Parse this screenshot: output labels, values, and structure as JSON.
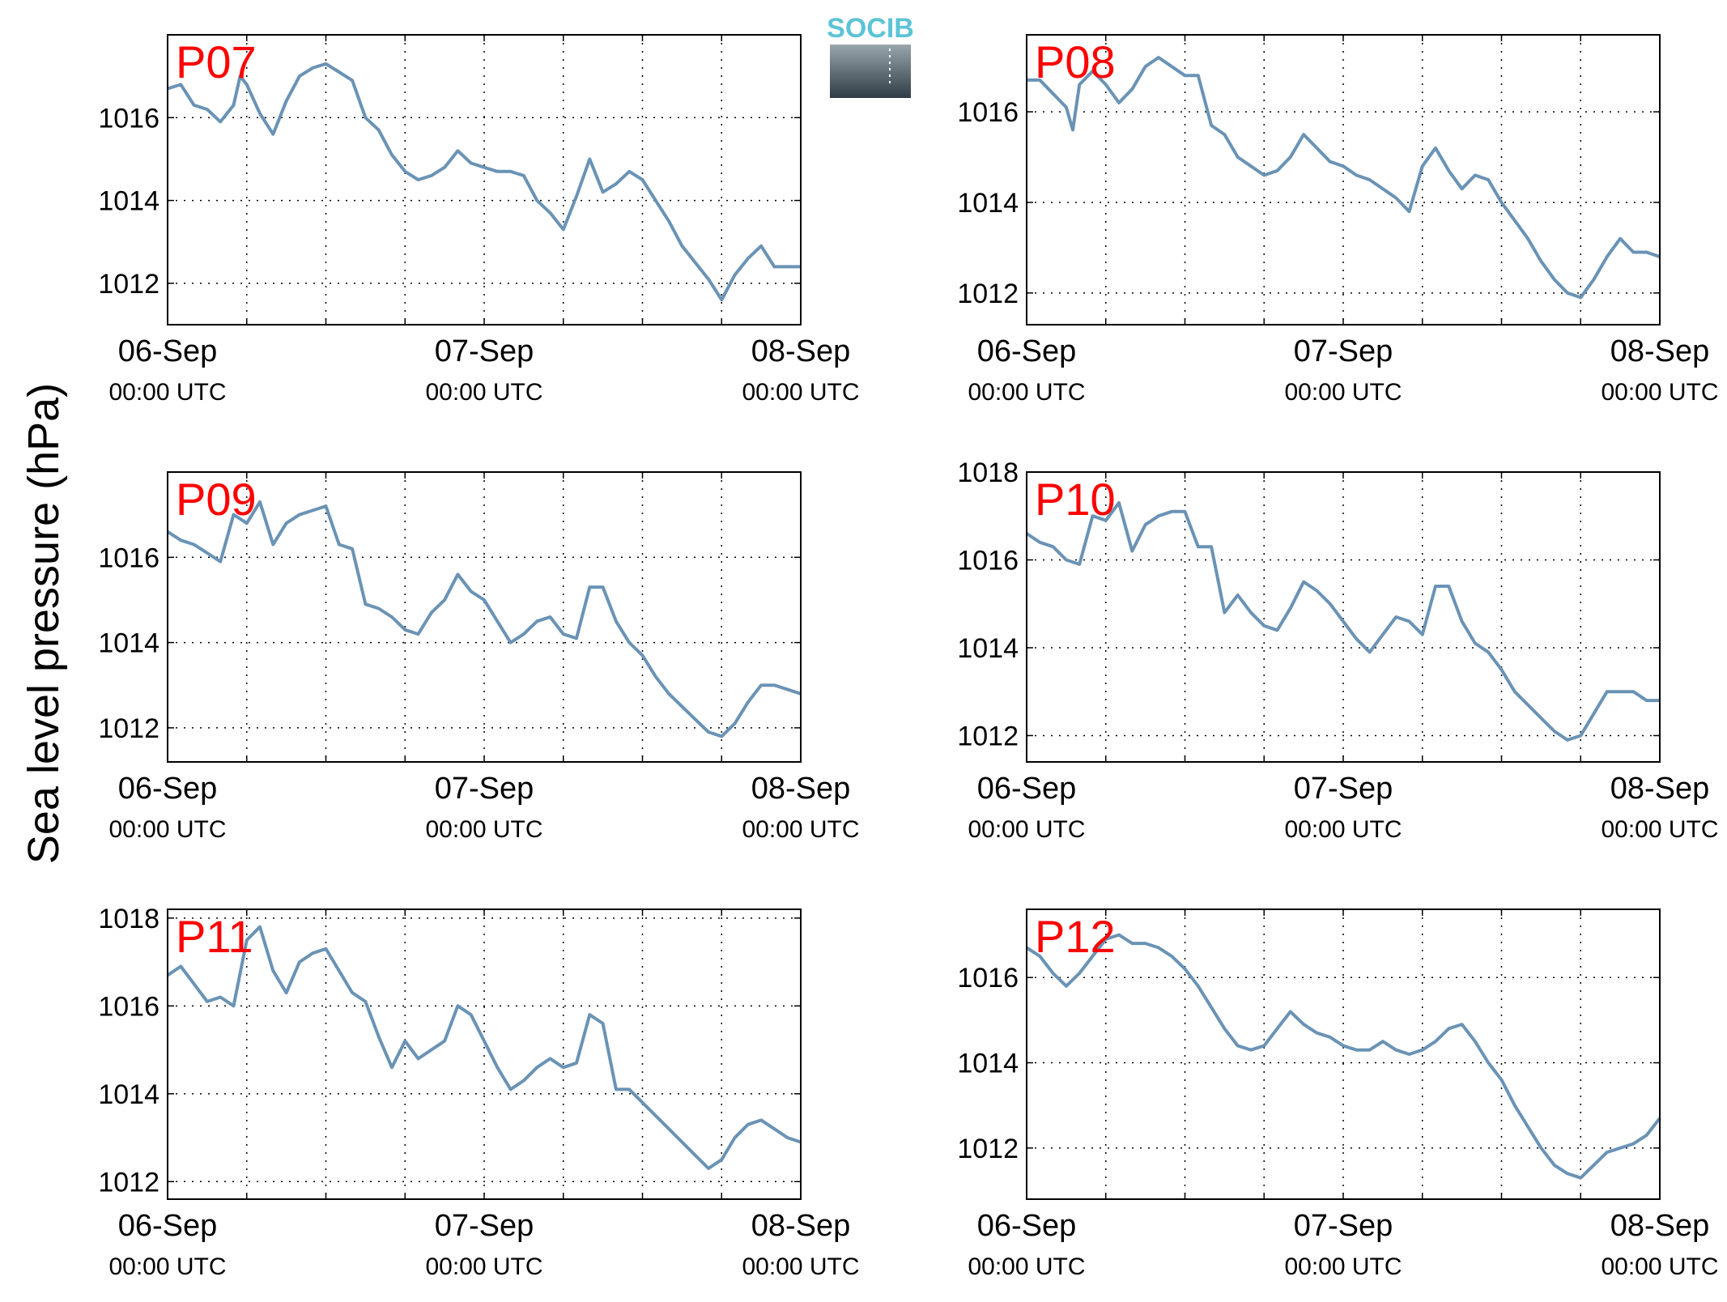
{
  "figure": {
    "ylabel": "Sea level pressure (hPa)",
    "logo_text": "SOCIB",
    "colors": {
      "line": "#6a93b5",
      "panel_label": "#ff0000",
      "grid": "#000000",
      "logo_text": "#5cc3d6",
      "logo_top": "#9aa6ad",
      "logo_bottom": "#2f3c45"
    }
  },
  "chart_data": [
    {
      "type": "line",
      "panel_label": "P07",
      "xlabel": "",
      "ylabel": "Sea level pressure (hPa)",
      "xlim": [
        "2014-09-06T00:00",
        "2014-09-08T00:00"
      ],
      "ylim": [
        1011,
        1018
      ],
      "yticks": [
        1012,
        1014,
        1016
      ],
      "xticks": [
        {
          "date": "06-Sep",
          "time": "00:00 UTC"
        },
        {
          "date": "07-Sep",
          "time": "00:00 UTC"
        },
        {
          "date": "08-Sep",
          "time": "00:00 UTC"
        }
      ],
      "grid": true,
      "series": [
        {
          "x_hours": [
            0,
            1,
            2,
            3,
            4,
            5,
            5.5,
            6,
            7,
            8,
            9,
            10,
            11,
            12,
            13,
            14,
            15,
            16,
            17,
            18,
            19,
            20,
            21,
            22,
            23,
            24,
            25,
            26,
            27,
            28,
            29,
            30,
            31,
            32,
            33,
            34,
            35,
            36,
            37,
            38,
            39,
            40,
            41,
            42,
            43,
            44,
            45,
            46,
            47,
            48
          ],
          "values": [
            1016.7,
            1016.8,
            1016.3,
            1016.2,
            1015.9,
            1016.3,
            1017.0,
            1016.8,
            1016.1,
            1015.6,
            1016.4,
            1017.0,
            1017.2,
            1017.3,
            1017.1,
            1016.9,
            1016.0,
            1015.7,
            1015.1,
            1014.7,
            1014.5,
            1014.6,
            1014.8,
            1015.2,
            1014.9,
            1014.8,
            1014.7,
            1014.7,
            1014.6,
            1014.0,
            1013.7,
            1013.3,
            1014.1,
            1015.0,
            1014.2,
            1014.4,
            1014.7,
            1014.5,
            1014.0,
            1013.5,
            1012.9,
            1012.5,
            1012.1,
            1011.6,
            1012.2,
            1012.6,
            1012.9,
            1012.4,
            1012.4,
            1012.4
          ]
        }
      ]
    },
    {
      "type": "line",
      "panel_label": "P08",
      "xlabel": "",
      "ylabel": "Sea level pressure (hPa)",
      "xlim": [
        "2014-09-06T00:00",
        "2014-09-08T00:00"
      ],
      "ylim": [
        1011.3,
        1017.7
      ],
      "yticks": [
        1012,
        1014,
        1016
      ],
      "xticks": [
        {
          "date": "06-Sep",
          "time": "00:00 UTC"
        },
        {
          "date": "07-Sep",
          "time": "00:00 UTC"
        },
        {
          "date": "08-Sep",
          "time": "00:00 UTC"
        }
      ],
      "grid": true,
      "series": [
        {
          "x_hours": [
            0,
            1,
            2,
            3,
            3.5,
            4,
            5,
            6,
            7,
            8,
            9,
            10,
            11,
            12,
            13,
            14,
            15,
            16,
            17,
            18,
            19,
            20,
            21,
            22,
            23,
            24,
            25,
            26,
            27,
            28,
            29,
            30,
            31,
            32,
            33,
            34,
            35,
            36,
            37,
            38,
            39,
            40,
            41,
            42,
            43,
            44,
            45,
            46,
            47,
            48
          ],
          "values": [
            1016.7,
            1016.7,
            1016.4,
            1016.1,
            1015.6,
            1016.6,
            1016.9,
            1016.6,
            1016.2,
            1016.5,
            1017.0,
            1017.2,
            1017.0,
            1016.8,
            1016.8,
            1015.7,
            1015.5,
            1015.0,
            1014.8,
            1014.6,
            1014.7,
            1015.0,
            1015.5,
            1015.2,
            1014.9,
            1014.8,
            1014.6,
            1014.5,
            1014.3,
            1014.1,
            1013.8,
            1014.8,
            1015.2,
            1014.7,
            1014.3,
            1014.6,
            1014.5,
            1014.0,
            1013.6,
            1013.2,
            1012.7,
            1012.3,
            1012.0,
            1011.9,
            1012.3,
            1012.8,
            1013.2,
            1012.9,
            1012.9,
            1012.8
          ]
        }
      ]
    },
    {
      "type": "line",
      "panel_label": "P09",
      "xlabel": "",
      "ylabel": "Sea level pressure (hPa)",
      "xlim": [
        "2014-09-06T00:00",
        "2014-09-08T00:00"
      ],
      "ylim": [
        1011.2,
        1018.0
      ],
      "yticks": [
        1012,
        1014,
        1016
      ],
      "xticks": [
        {
          "date": "06-Sep",
          "time": "00:00 UTC"
        },
        {
          "date": "07-Sep",
          "time": "00:00 UTC"
        },
        {
          "date": "08-Sep",
          "time": "00:00 UTC"
        }
      ],
      "grid": true,
      "series": [
        {
          "x_hours": [
            0,
            1,
            2,
            3,
            4,
            5,
            6,
            7,
            8,
            9,
            10,
            11,
            12,
            13,
            14,
            15,
            16,
            17,
            18,
            19,
            20,
            21,
            22,
            23,
            24,
            25,
            26,
            27,
            28,
            29,
            30,
            31,
            32,
            33,
            34,
            35,
            36,
            37,
            38,
            39,
            40,
            41,
            42,
            43,
            44,
            45,
            46,
            47,
            48
          ],
          "values": [
            1016.6,
            1016.4,
            1016.3,
            1016.1,
            1015.9,
            1017.0,
            1016.8,
            1017.3,
            1016.3,
            1016.8,
            1017.0,
            1017.1,
            1017.2,
            1016.3,
            1016.2,
            1014.9,
            1014.8,
            1014.6,
            1014.3,
            1014.2,
            1014.7,
            1015.0,
            1015.6,
            1015.2,
            1015.0,
            1014.5,
            1014.0,
            1014.2,
            1014.5,
            1014.6,
            1014.2,
            1014.1,
            1015.3,
            1015.3,
            1014.5,
            1014.0,
            1013.7,
            1013.2,
            1012.8,
            1012.5,
            1012.2,
            1011.9,
            1011.8,
            1012.1,
            1012.6,
            1013.0,
            1013.0,
            1012.9,
            1012.8
          ]
        }
      ]
    },
    {
      "type": "line",
      "panel_label": "P10",
      "xlabel": "",
      "ylabel": "Sea level pressure (hPa)",
      "xlim": [
        "2014-09-06T00:00",
        "2014-09-08T00:00"
      ],
      "ylim": [
        1011.4,
        1018.0
      ],
      "yticks": [
        1012,
        1014,
        1016,
        1018
      ],
      "xticks": [
        {
          "date": "06-Sep",
          "time": "00:00 UTC"
        },
        {
          "date": "07-Sep",
          "time": "00:00 UTC"
        },
        {
          "date": "08-Sep",
          "time": "00:00 UTC"
        }
      ],
      "grid": true,
      "series": [
        {
          "x_hours": [
            0,
            1,
            2,
            3,
            4,
            5,
            6,
            7,
            8,
            9,
            10,
            11,
            12,
            13,
            14,
            15,
            16,
            17,
            18,
            19,
            20,
            21,
            22,
            23,
            24,
            25,
            26,
            27,
            28,
            29,
            30,
            31,
            32,
            33,
            34,
            35,
            36,
            37,
            38,
            39,
            40,
            41,
            42,
            43,
            44,
            45,
            46,
            47,
            48
          ],
          "values": [
            1016.6,
            1016.4,
            1016.3,
            1016.0,
            1015.9,
            1017.0,
            1016.9,
            1017.3,
            1016.2,
            1016.8,
            1017.0,
            1017.1,
            1017.1,
            1016.3,
            1016.3,
            1014.8,
            1015.2,
            1014.8,
            1014.5,
            1014.4,
            1014.9,
            1015.5,
            1015.3,
            1015.0,
            1014.6,
            1014.2,
            1013.9,
            1014.3,
            1014.7,
            1014.6,
            1014.3,
            1015.4,
            1015.4,
            1014.6,
            1014.1,
            1013.9,
            1013.5,
            1013.0,
            1012.7,
            1012.4,
            1012.1,
            1011.9,
            1012.0,
            1012.5,
            1013.0,
            1013.0,
            1013.0,
            1012.8,
            1012.8
          ]
        }
      ]
    },
    {
      "type": "line",
      "panel_label": "P11",
      "xlabel": "",
      "ylabel": "Sea level pressure (hPa)",
      "xlim": [
        "2014-09-06T00:00",
        "2014-09-08T00:00"
      ],
      "ylim": [
        1011.6,
        1018.2
      ],
      "yticks": [
        1012,
        1014,
        1016,
        1018
      ],
      "xticks": [
        {
          "date": "06-Sep",
          "time": "00:00 UTC"
        },
        {
          "date": "07-Sep",
          "time": "00:00 UTC"
        },
        {
          "date": "08-Sep",
          "time": "00:00 UTC"
        }
      ],
      "grid": true,
      "series": [
        {
          "x_hours": [
            0,
            1,
            2,
            3,
            4,
            5,
            6,
            7,
            8,
            9,
            10,
            11,
            12,
            13,
            14,
            15,
            16,
            17,
            18,
            19,
            20,
            21,
            22,
            23,
            24,
            25,
            26,
            27,
            28,
            29,
            30,
            31,
            32,
            33,
            34,
            35,
            36,
            37,
            38,
            39,
            40,
            41,
            42,
            43,
            44,
            45,
            46,
            47,
            48
          ],
          "values": [
            1016.7,
            1016.9,
            1016.5,
            1016.1,
            1016.2,
            1016.0,
            1017.5,
            1017.8,
            1016.8,
            1016.3,
            1017.0,
            1017.2,
            1017.3,
            1016.8,
            1016.3,
            1016.1,
            1015.3,
            1014.6,
            1015.2,
            1014.8,
            1015.0,
            1015.2,
            1016.0,
            1015.8,
            1015.2,
            1014.6,
            1014.1,
            1014.3,
            1014.6,
            1014.8,
            1014.6,
            1014.7,
            1015.8,
            1015.6,
            1014.1,
            1014.1,
            1013.8,
            1013.5,
            1013.2,
            1012.9,
            1012.6,
            1012.3,
            1012.5,
            1013.0,
            1013.3,
            1013.4,
            1013.2,
            1013.0,
            1012.9
          ]
        }
      ]
    },
    {
      "type": "line",
      "panel_label": "P12",
      "xlabel": "",
      "ylabel": "Sea level pressure (hPa)",
      "xlim": [
        "2014-09-06T00:00",
        "2014-09-08T00:00"
      ],
      "ylim": [
        1010.8,
        1017.6
      ],
      "yticks": [
        1012,
        1014,
        1016
      ],
      "xticks": [
        {
          "date": "06-Sep",
          "time": "00:00 UTC"
        },
        {
          "date": "07-Sep",
          "time": "00:00 UTC"
        },
        {
          "date": "08-Sep",
          "time": "00:00 UTC"
        }
      ],
      "grid": true,
      "series": [
        {
          "x_hours": [
            0,
            1,
            2,
            3,
            4,
            5,
            6,
            7,
            8,
            9,
            10,
            11,
            12,
            13,
            14,
            15,
            16,
            17,
            18,
            19,
            20,
            21,
            22,
            23,
            24,
            25,
            26,
            27,
            28,
            29,
            30,
            31,
            32,
            33,
            34,
            35,
            36,
            37,
            38,
            39,
            40,
            41,
            42,
            43,
            44,
            45,
            46,
            47,
            48
          ],
          "values": [
            1016.7,
            1016.5,
            1016.1,
            1015.8,
            1016.1,
            1016.5,
            1016.9,
            1017.0,
            1016.8,
            1016.8,
            1016.7,
            1016.5,
            1016.2,
            1015.8,
            1015.3,
            1014.8,
            1014.4,
            1014.3,
            1014.4,
            1014.8,
            1015.2,
            1014.9,
            1014.7,
            1014.6,
            1014.4,
            1014.3,
            1014.3,
            1014.5,
            1014.3,
            1014.2,
            1014.3,
            1014.5,
            1014.8,
            1014.9,
            1014.5,
            1014.0,
            1013.6,
            1013.0,
            1012.5,
            1012.0,
            1011.6,
            1011.4,
            1011.3,
            1011.6,
            1011.9,
            1012.0,
            1012.1,
            1012.3,
            1012.7
          ]
        }
      ]
    }
  ]
}
